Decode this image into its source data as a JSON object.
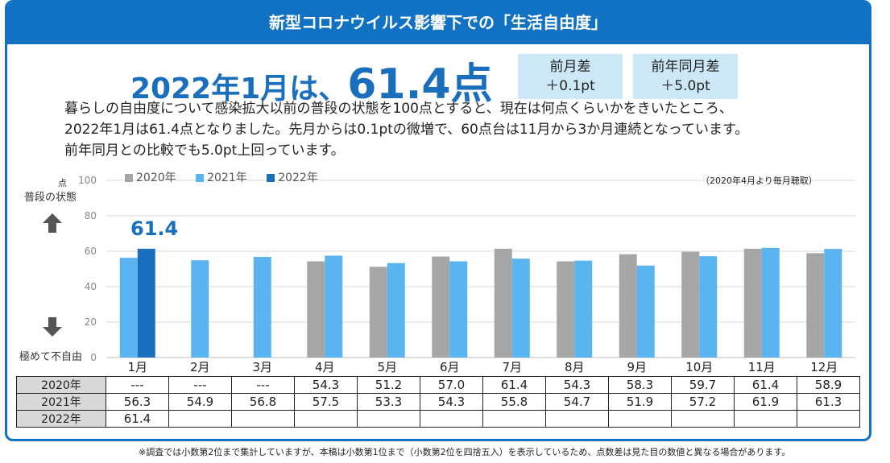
{
  "banner": "新型コロナウイルス影響下での「生活自由度」",
  "headline": {
    "prefix": "2022年1月は、",
    "value": "61.4点"
  },
  "diff_boxes": [
    {
      "label": "前月差",
      "value": "＋0.1pt"
    },
    {
      "label": "前年同月差",
      "value": "＋5.0pt"
    }
  ],
  "description": [
    "暮らしの自由度について感染拡大以前の普段の状態を100点とすると、現在は何点くらいかをきいたところ、",
    "2022年1月は61.4点となりました。先月からは0.1ptの微増で、60点台は11月から3か月連続となっています。",
    "前年同月との比較でも5.0pt上回っています。"
  ],
  "labels": {
    "unit": "点",
    "normal_state": "普段の状態",
    "lowest": "極めて不自由",
    "top_note": "（2020年4月より毎月聴取）",
    "callout": "61.4"
  },
  "colors": {
    "y2020": "#a6a6a6",
    "y2021": "#5ab4f0",
    "y2022": "#1a6fbd",
    "banner": "#1172c4",
    "grid": "#d9d9d9"
  },
  "chart_data": {
    "type": "bar",
    "categories": [
      "1月",
      "2月",
      "3月",
      "4月",
      "5月",
      "6月",
      "7月",
      "8月",
      "9月",
      "10月",
      "11月",
      "12月"
    ],
    "series": [
      {
        "name": "2020年",
        "values": [
          null,
          null,
          null,
          54.3,
          51.2,
          57.0,
          61.4,
          54.3,
          58.3,
          59.7,
          61.4,
          58.9
        ]
      },
      {
        "name": "2021年",
        "values": [
          56.3,
          54.9,
          56.8,
          57.5,
          53.3,
          54.3,
          55.8,
          54.7,
          51.9,
          57.2,
          61.9,
          61.3
        ]
      },
      {
        "name": "2022年",
        "values": [
          61.4,
          null,
          null,
          null,
          null,
          null,
          null,
          null,
          null,
          null,
          null,
          null
        ]
      }
    ],
    "yticks": [
      0,
      20,
      40,
      60,
      80,
      100
    ],
    "ylim": [
      0,
      100
    ],
    "grid": true,
    "legend": "top-left"
  },
  "table": {
    "rows": [
      {
        "label": "2020年",
        "cells": [
          "---",
          "---",
          "---",
          "54.3",
          "51.2",
          "57.0",
          "61.4",
          "54.3",
          "58.3",
          "59.7",
          "61.4",
          "58.9"
        ]
      },
      {
        "label": "2021年",
        "cells": [
          "56.3",
          "54.9",
          "56.8",
          "57.5",
          "53.3",
          "54.3",
          "55.8",
          "54.7",
          "51.9",
          "57.2",
          "61.9",
          "61.3"
        ]
      },
      {
        "label": "2022年",
        "cells": [
          "61.4",
          "",
          "",
          "",
          "",
          "",
          "",
          "",
          "",
          "",
          "",
          ""
        ]
      }
    ]
  },
  "footnote": "※調査では小数第2位まで集計していますが、本稿は小数第1位まで（小数第2位を四捨五入）を表示しているため、点数差は見た目の数値と異なる場合があります。"
}
